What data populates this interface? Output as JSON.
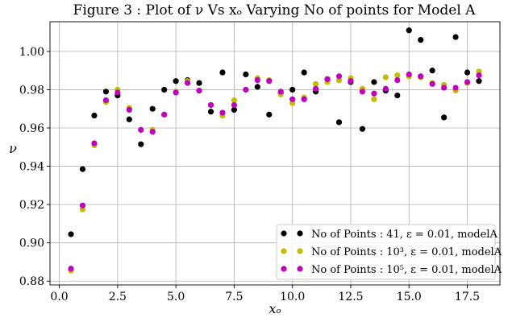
{
  "chart_data": {
    "type": "scatter",
    "title": "Figure 3 : Plot of ν Vs xₒ Varying No of points for Model A",
    "xlabel": "xₒ",
    "ylabel": "ν",
    "xlim": [
      -0.4,
      18.9
    ],
    "ylim": [
      0.878,
      1.0155
    ],
    "xticks": [
      0.0,
      2.5,
      5.0,
      7.5,
      10.0,
      12.5,
      15.0,
      17.5
    ],
    "xtick_labels": [
      "0.0",
      "2.5",
      "5.0",
      "7.5",
      "10.0",
      "12.5",
      "15.0",
      "17.5"
    ],
    "yticks": [
      0.88,
      0.9,
      0.92,
      0.94,
      0.96,
      0.98,
      1.0
    ],
    "ytick_labels": [
      "0.88",
      "0.90",
      "0.92",
      "0.94",
      "0.96",
      "0.98",
      "1.00"
    ],
    "grid": true,
    "legend_position": "bottom-right",
    "series": [
      {
        "name": "No of Points : 41, ε = 0.01, modelA",
        "color": "#000000",
        "x": [
          0.5,
          1.0,
          1.5,
          2.0,
          2.5,
          3.0,
          3.5,
          4.0,
          4.5,
          5.0,
          5.5,
          6.0,
          6.5,
          7.0,
          7.5,
          8.0,
          8.5,
          9.0,
          9.5,
          10.0,
          10.5,
          11.0,
          11.5,
          12.0,
          12.5,
          13.0,
          13.5,
          14.0,
          14.5,
          15.0,
          15.5,
          16.0,
          16.5,
          17.0,
          17.5,
          18.0
        ],
        "y": [
          0.9045,
          0.9385,
          0.9665,
          0.979,
          0.977,
          0.9645,
          0.9515,
          0.97,
          0.98,
          0.9845,
          0.985,
          0.9835,
          0.9685,
          0.989,
          0.9695,
          0.988,
          0.9815,
          0.967,
          0.978,
          0.98,
          0.989,
          0.979,
          0.9855,
          0.963,
          0.984,
          0.9595,
          0.984,
          0.9795,
          0.977,
          1.011,
          1.006,
          0.99,
          0.9655,
          1.0075,
          0.989,
          0.9845
        ]
      },
      {
        "name": "No of Points : 10³, ε = 0.01, modelA",
        "color": "#bfbf00",
        "x": [
          0.5,
          1.0,
          1.5,
          2.0,
          2.5,
          3.0,
          3.5,
          4.0,
          4.5,
          5.0,
          5.5,
          6.0,
          6.5,
          7.0,
          7.5,
          8.0,
          8.5,
          9.0,
          9.5,
          10.0,
          10.5,
          11.0,
          11.5,
          12.0,
          12.5,
          13.0,
          13.5,
          14.0,
          14.5,
          15.0,
          15.5,
          16.0,
          16.5,
          17.0,
          17.5,
          18.0
        ],
        "y": [
          0.8855,
          0.9175,
          0.951,
          0.9735,
          0.98,
          0.9705,
          0.959,
          0.959,
          0.967,
          0.979,
          0.9845,
          0.9795,
          0.972,
          0.9665,
          0.9745,
          0.98,
          0.986,
          0.985,
          0.9775,
          0.973,
          0.976,
          0.983,
          0.984,
          0.985,
          0.986,
          0.9805,
          0.975,
          0.9865,
          0.9875,
          0.987,
          0.9865,
          0.9835,
          0.9825,
          0.9795,
          0.9835,
          0.9895
        ]
      },
      {
        "name": "No of Points : 10⁵, ε = 0.01, modelA",
        "color": "#bf00bf",
        "x": [
          0.5,
          1.0,
          1.5,
          2.0,
          2.5,
          3.0,
          3.5,
          4.0,
          4.5,
          5.0,
          5.5,
          6.0,
          6.5,
          7.0,
          7.5,
          8.0,
          8.5,
          9.0,
          9.5,
          10.0,
          10.5,
          11.0,
          11.5,
          12.0,
          12.5,
          13.0,
          13.5,
          14.0,
          14.5,
          15.0,
          15.5,
          16.0,
          16.5,
          17.0,
          17.5,
          18.0
        ],
        "y": [
          0.8865,
          0.9195,
          0.952,
          0.9745,
          0.9785,
          0.9695,
          0.959,
          0.958,
          0.967,
          0.9785,
          0.9835,
          0.9795,
          0.972,
          0.968,
          0.972,
          0.98,
          0.985,
          0.9845,
          0.979,
          0.975,
          0.975,
          0.9805,
          0.9855,
          0.987,
          0.9845,
          0.979,
          0.978,
          0.9805,
          0.985,
          0.988,
          0.987,
          0.983,
          0.981,
          0.981,
          0.984,
          0.9875
        ]
      }
    ]
  }
}
